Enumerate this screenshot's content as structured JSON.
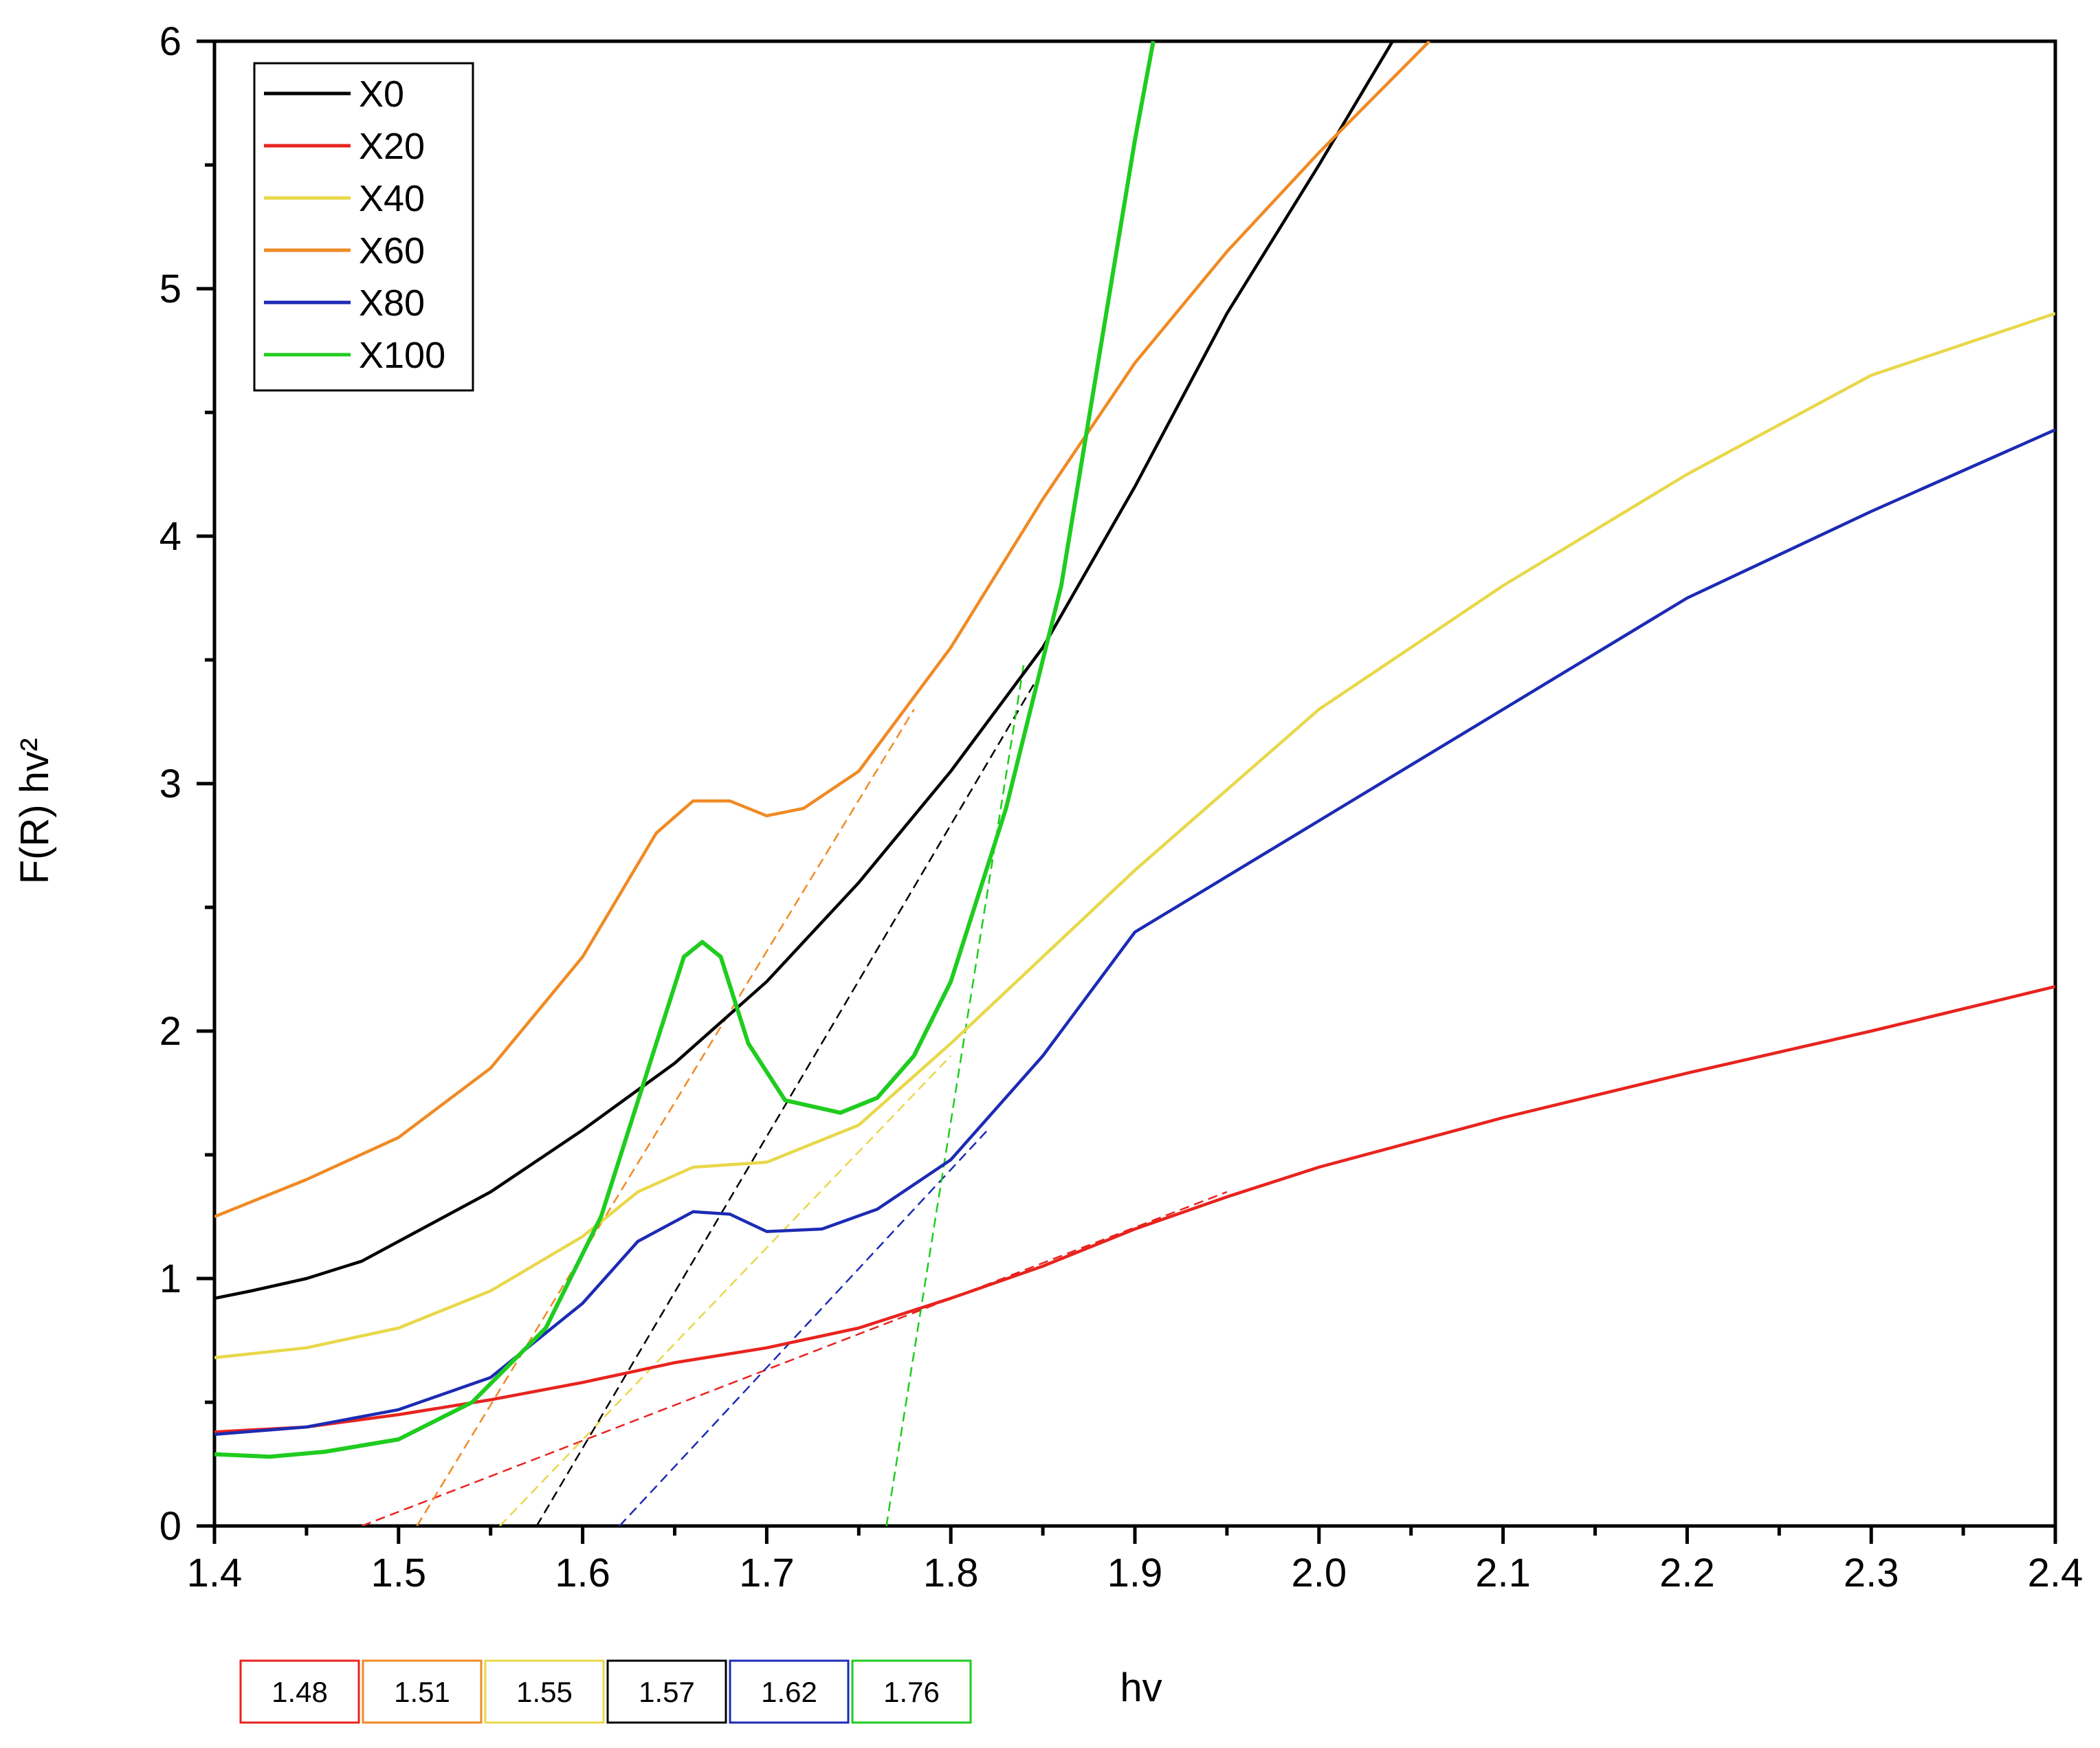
{
  "chart_data": {
    "type": "line",
    "xlabel": "hv",
    "ylabel": "F(R) hv²",
    "xlim": [
      1.4,
      2.4
    ],
    "ylim": [
      0,
      6
    ],
    "xticks": [
      "1.4",
      "1.5",
      "1.6",
      "1.7",
      "1.8",
      "1.9",
      "2.0",
      "2.1",
      "2.2",
      "2.3",
      "2.4"
    ],
    "yticks": [
      "0",
      "1",
      "2",
      "3",
      "4",
      "5",
      "6"
    ],
    "grid": false,
    "legend_position": "top-left",
    "series": [
      {
        "name": "X0",
        "color": "#000000",
        "x": [
          1.4,
          1.42,
          1.45,
          1.48,
          1.5,
          1.55,
          1.6,
          1.65,
          1.7,
          1.75,
          1.8,
          1.85,
          1.9,
          1.95,
          2.0,
          2.04
        ],
        "y": [
          0.92,
          0.95,
          1.0,
          1.07,
          1.15,
          1.35,
          1.6,
          1.87,
          2.2,
          2.6,
          3.05,
          3.55,
          4.2,
          4.9,
          5.5,
          6.0
        ]
      },
      {
        "name": "X20",
        "color": "#e8231e",
        "x": [
          1.4,
          1.45,
          1.5,
          1.55,
          1.6,
          1.65,
          1.7,
          1.75,
          1.8,
          1.85,
          1.9,
          1.95,
          2.0,
          2.1,
          2.2,
          2.3,
          2.4
        ],
        "y": [
          0.38,
          0.4,
          0.45,
          0.51,
          0.58,
          0.66,
          0.72,
          0.8,
          0.92,
          1.05,
          1.2,
          1.33,
          1.45,
          1.65,
          1.83,
          2.0,
          2.18
        ]
      },
      {
        "name": "X40",
        "color": "#e8d84a",
        "x": [
          1.4,
          1.45,
          1.5,
          1.55,
          1.6,
          1.63,
          1.66,
          1.7,
          1.75,
          1.8,
          1.85,
          1.9,
          2.0,
          2.1,
          2.2,
          2.3,
          2.4
        ],
        "y": [
          0.68,
          0.72,
          0.8,
          0.95,
          1.17,
          1.35,
          1.45,
          1.47,
          1.62,
          1.95,
          2.3,
          2.65,
          3.3,
          3.8,
          4.25,
          4.65,
          4.9
        ]
      },
      {
        "name": "X60",
        "color": "#f08a24",
        "x": [
          1.4,
          1.45,
          1.5,
          1.55,
          1.6,
          1.64,
          1.66,
          1.68,
          1.7,
          1.72,
          1.75,
          1.8,
          1.85,
          1.9,
          1.95,
          2.0,
          2.06
        ],
        "y": [
          1.25,
          1.4,
          1.57,
          1.85,
          2.3,
          2.8,
          2.93,
          2.93,
          2.87,
          2.9,
          3.05,
          3.55,
          4.15,
          4.7,
          5.15,
          5.55,
          6.0
        ]
      },
      {
        "name": "X80",
        "color": "#1c2bb4",
        "x": [
          1.4,
          1.45,
          1.5,
          1.55,
          1.6,
          1.63,
          1.66,
          1.68,
          1.7,
          1.73,
          1.76,
          1.8,
          1.85,
          1.9,
          2.0,
          2.1,
          2.2,
          2.3,
          2.4
        ],
        "y": [
          0.37,
          0.4,
          0.47,
          0.6,
          0.9,
          1.15,
          1.27,
          1.26,
          1.19,
          1.2,
          1.28,
          1.48,
          1.9,
          2.4,
          2.85,
          3.3,
          3.75,
          4.1,
          4.43
        ]
      },
      {
        "name": "X100",
        "color": "#1fcc1f",
        "x": [
          1.4,
          1.43,
          1.46,
          1.5,
          1.54,
          1.58,
          1.61,
          1.64,
          1.655,
          1.665,
          1.675,
          1.69,
          1.71,
          1.74,
          1.76,
          1.78,
          1.8,
          1.83,
          1.86,
          1.88,
          1.9,
          1.91
        ],
        "y": [
          0.29,
          0.28,
          0.3,
          0.35,
          0.5,
          0.8,
          1.25,
          1.95,
          2.3,
          2.36,
          2.3,
          1.95,
          1.72,
          1.67,
          1.73,
          1.9,
          2.2,
          2.9,
          3.8,
          4.7,
          5.6,
          6.0
        ]
      }
    ],
    "tangent_lines": [
      {
        "color": "#e8231e",
        "x": [
          1.48,
          1.95
        ],
        "y": [
          0.0,
          1.35
        ]
      },
      {
        "color": "#f08a24",
        "x": [
          1.51,
          1.78
        ],
        "y": [
          0.0,
          3.3
        ]
      },
      {
        "color": "#e8d84a",
        "x": [
          1.555,
          1.8
        ],
        "y": [
          0.0,
          1.9
        ]
      },
      {
        "color": "#000000",
        "x": [
          1.575,
          1.845
        ],
        "y": [
          0.0,
          3.4
        ]
      },
      {
        "color": "#1c2bb4",
        "x": [
          1.62,
          1.82
        ],
        "y": [
          0.0,
          1.6
        ]
      },
      {
        "color": "#1fcc1f",
        "x": [
          1.765,
          1.84
        ],
        "y": [
          0.0,
          3.5
        ]
      }
    ],
    "bandgap_labels": [
      {
        "value": "1.48",
        "color": "#e8231e"
      },
      {
        "value": "1.51",
        "color": "#f08a24"
      },
      {
        "value": "1.55",
        "color": "#e8d84a"
      },
      {
        "value": "1.57",
        "color": "#000000"
      },
      {
        "value": "1.62",
        "color": "#1c2bb4"
      },
      {
        "value": "1.76",
        "color": "#1fcc1f"
      }
    ]
  }
}
